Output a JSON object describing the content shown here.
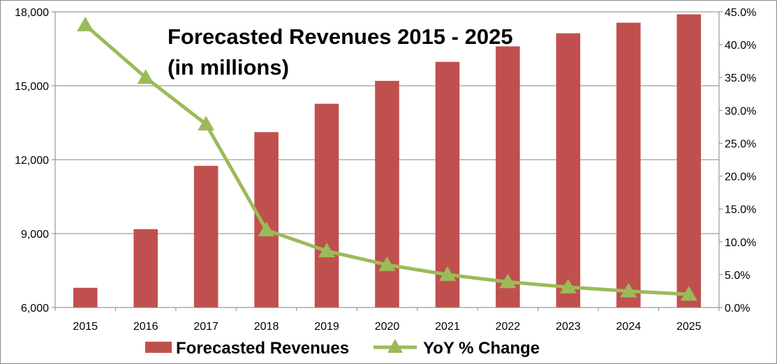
{
  "chart_data": {
    "type": "bar",
    "title_lines": [
      "Forecasted Revenues 2015 - 2025",
      "(in millions)"
    ],
    "categories": [
      "2015",
      "2016",
      "2017",
      "2018",
      "2019",
      "2020",
      "2021",
      "2022",
      "2023",
      "2024",
      "2025"
    ],
    "series": [
      {
        "name": "Forecasted Revenues",
        "type": "bar",
        "axis": "left",
        "color": "#C0504D",
        "values": [
          6800,
          9180,
          11750,
          13120,
          14270,
          15200,
          15970,
          16600,
          17130,
          17560,
          17900
        ]
      },
      {
        "name": "YoY % Change",
        "type": "line",
        "axis": "right",
        "color": "#9BBB59",
        "marker": "triangle",
        "values": [
          43.0,
          35.0,
          27.9,
          11.8,
          8.6,
          6.5,
          5.0,
          3.9,
          3.1,
          2.5,
          2.0
        ]
      }
    ],
    "y_left": {
      "min": 6000,
      "max": 18000,
      "ticks": [
        6000,
        9000,
        12000,
        15000,
        18000
      ],
      "tick_labels": [
        "6,000",
        "9,000",
        "12,000",
        "15,000",
        "18,000"
      ]
    },
    "y_right": {
      "min": 0,
      "max": 45,
      "ticks": [
        0,
        5,
        10,
        15,
        20,
        25,
        30,
        35,
        40,
        45
      ],
      "tick_labels": [
        "0.0%",
        "5.0%",
        "10.0%",
        "15.0%",
        "20.0%",
        "25.0%",
        "30.0%",
        "35.0%",
        "40.0%",
        "45.0%"
      ]
    },
    "grid": true,
    "legend_position": "bottom"
  }
}
